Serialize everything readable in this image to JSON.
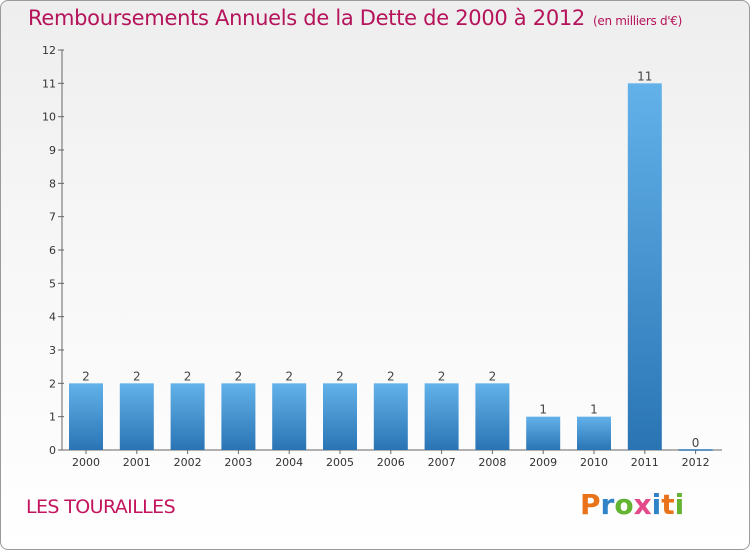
{
  "title": "Remboursements Annuels de la Dette de 2000 à 2012",
  "unit": "(en milliers d'€)",
  "place": "LES TOURAILLES",
  "logo": {
    "letters": [
      "P",
      "r",
      "o",
      "x",
      "i",
      "t",
      "i"
    ],
    "colors": [
      "#e8731a",
      "#2f83c6",
      "#63b531",
      "#e24a8a",
      "#2f83c6",
      "#e8731a",
      "#63b531"
    ]
  },
  "colors": {
    "title": "#b5135a",
    "bar_light": "#63b2ea",
    "bar_dark": "#2a74b4"
  },
  "chart_data": {
    "type": "bar",
    "title": "Remboursements Annuels de la Dette de 2000 à 2012",
    "xlabel": "",
    "ylabel": "(en milliers d'€)",
    "categories": [
      "2000",
      "2001",
      "2002",
      "2003",
      "2004",
      "2005",
      "2006",
      "2007",
      "2008",
      "2009",
      "2010",
      "2011",
      "2012"
    ],
    "values": [
      2,
      2,
      2,
      2,
      2,
      2,
      2,
      2,
      2,
      1,
      1,
      11,
      0
    ],
    "ylim": [
      0,
      12
    ],
    "yticks": [
      0,
      1,
      2,
      3,
      4,
      5,
      6,
      7,
      8,
      9,
      10,
      11,
      12
    ],
    "grid": false,
    "data_labels": true
  }
}
